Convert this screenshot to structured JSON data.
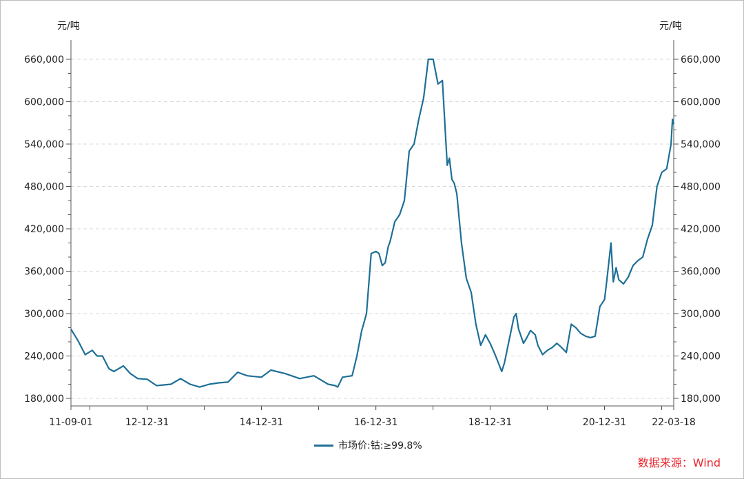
{
  "source_text": "数据来源：Wind",
  "chart_data": {
    "type": "line",
    "yunit_left": "元/吨",
    "yunit_right": "元/吨",
    "ylim": [
      180000,
      660000
    ],
    "yticks": [
      "180,000",
      "240,000",
      "300,000",
      "360,000",
      "420,000",
      "480,000",
      "540,000",
      "600,000",
      "660,000"
    ],
    "ytick_values": [
      180000,
      240000,
      300000,
      360000,
      420000,
      480000,
      540000,
      600000,
      660000
    ],
    "xlim": [
      "2011-09-01",
      "2022-03-18"
    ],
    "xtick_labels": [
      "11-09-01",
      "12-12-31",
      "14-12-31",
      "16-12-31",
      "18-12-31",
      "20-12-31",
      "22-03-18"
    ],
    "xtick_dates": [
      "2011-09-01",
      "2012-12-31",
      "2014-12-31",
      "2016-12-31",
      "2018-12-31",
      "2020-12-31",
      "2022-03-18"
    ],
    "grid": "horizontal dashed",
    "legend_position": "bottom-center",
    "series": [
      {
        "name": "市场价:钴:≥99.8%",
        "color": "#1e6f97",
        "x": [
          "2011-09-01",
          "2011-10-15",
          "2011-12-01",
          "2012-01-15",
          "2012-02-15",
          "2012-03-20",
          "2012-05-01",
          "2012-06-01",
          "2012-08-01",
          "2012-09-15",
          "2012-11-01",
          "2012-12-31",
          "2013-03-01",
          "2013-06-01",
          "2013-08-01",
          "2013-10-01",
          "2013-12-01",
          "2014-02-01",
          "2014-04-01",
          "2014-06-01",
          "2014-08-01",
          "2014-10-01",
          "2014-12-31",
          "2015-03-01",
          "2015-06-01",
          "2015-09-01",
          "2015-12-01",
          "2016-03-01",
          "2016-04-15",
          "2016-05-01",
          "2016-06-01",
          "2016-07-01",
          "2016-08-01",
          "2016-09-01",
          "2016-10-01",
          "2016-11-01",
          "2016-12-01",
          "2017-01-01",
          "2017-01-20",
          "2017-02-10",
          "2017-03-01",
          "2017-03-20",
          "2017-04-01",
          "2017-05-01",
          "2017-06-01",
          "2017-07-01",
          "2017-08-01",
          "2017-09-01",
          "2017-10-01",
          "2017-11-01",
          "2017-12-01",
          "2018-01-01",
          "2018-02-01",
          "2018-03-01",
          "2018-04-01",
          "2018-04-15",
          "2018-05-01",
          "2018-05-15",
          "2018-06-01",
          "2018-07-01",
          "2018-08-01",
          "2018-09-01",
          "2018-10-01",
          "2018-11-01",
          "2018-12-01",
          "2018-12-31",
          "2019-02-01",
          "2019-03-15",
          "2019-04-01",
          "2019-05-01",
          "2019-06-01",
          "2019-06-15",
          "2019-07-01",
          "2019-08-01",
          "2019-08-20",
          "2019-09-15",
          "2019-10-15",
          "2019-11-01",
          "2019-12-01",
          "2020-01-01",
          "2020-02-01",
          "2020-03-01",
          "2020-04-01",
          "2020-05-01",
          "2020-06-01",
          "2020-07-01",
          "2020-08-01",
          "2020-09-01",
          "2020-10-01",
          "2020-11-01",
          "2020-12-01",
          "2020-12-31",
          "2021-01-15",
          "2021-02-10",
          "2021-02-25",
          "2021-03-15",
          "2021-04-01",
          "2021-05-01",
          "2021-06-01",
          "2021-07-01",
          "2021-08-01",
          "2021-09-01",
          "2021-10-01",
          "2021-11-01",
          "2021-12-01",
          "2022-01-01",
          "2022-02-01",
          "2022-03-01",
          "2022-03-10",
          "2022-03-18"
        ],
        "values": [
          278000,
          262000,
          242000,
          248000,
          240000,
          240000,
          222000,
          218000,
          226000,
          215000,
          208000,
          207000,
          198000,
          200000,
          208000,
          200000,
          196000,
          200000,
          202000,
          203000,
          217000,
          212000,
          210000,
          220000,
          215000,
          208000,
          212000,
          200000,
          198000,
          196000,
          210000,
          211000,
          212000,
          240000,
          275000,
          300000,
          385000,
          388000,
          385000,
          368000,
          372000,
          395000,
          402000,
          430000,
          440000,
          460000,
          530000,
          540000,
          575000,
          605000,
          660000,
          660000,
          625000,
          630000,
          510000,
          520000,
          490000,
          485000,
          470000,
          400000,
          350000,
          330000,
          285000,
          255000,
          270000,
          258000,
          242000,
          218000,
          230000,
          262000,
          295000,
          300000,
          278000,
          258000,
          265000,
          276000,
          270000,
          255000,
          242000,
          248000,
          252000,
          258000,
          252000,
          245000,
          285000,
          280000,
          272000,
          268000,
          266000,
          268000,
          310000,
          320000,
          348000,
          400000,
          345000,
          365000,
          348000,
          342000,
          352000,
          368000,
          375000,
          380000,
          405000,
          425000,
          480000,
          500000,
          505000,
          540000,
          575000,
          568000
        ]
      }
    ]
  }
}
